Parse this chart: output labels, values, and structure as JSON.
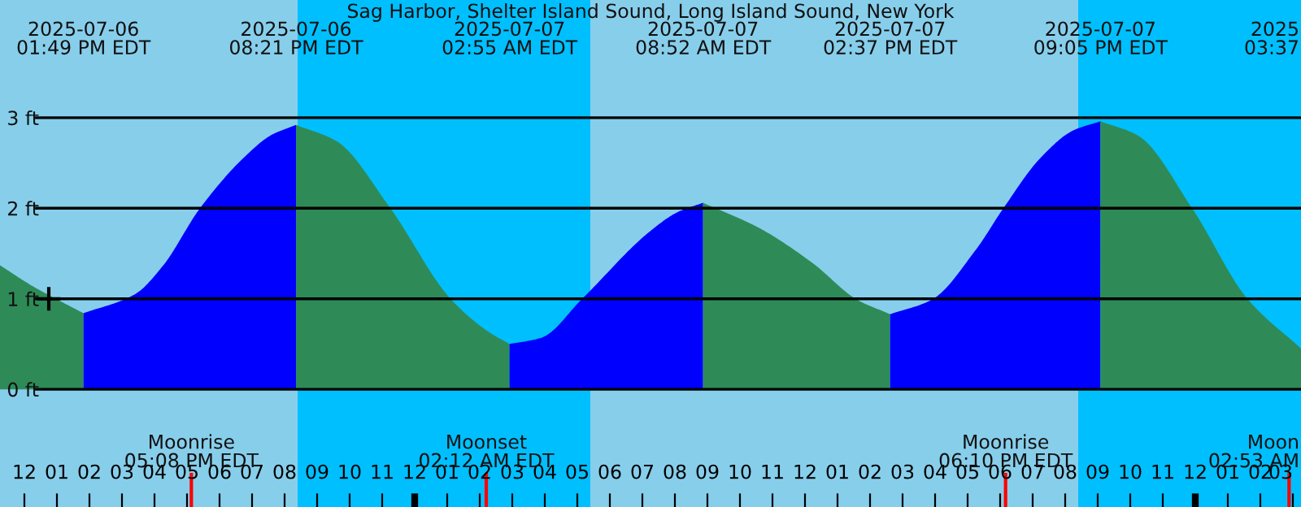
{
  "chart_data": {
    "type": "area",
    "title": "Sag Harbor, Shelter Island Sound, Long Island Sound, New York",
    "xlim": [
      "2025-07-06T11:15",
      "2025-07-08T03:15"
    ],
    "ylim": [
      -1.3,
      4.3
    ],
    "yticks": [
      {
        "value": 0,
        "label": "0 ft"
      },
      {
        "value": 1,
        "label": "1 ft"
      },
      {
        "value": 2,
        "label": "2 ft"
      },
      {
        "value": 3,
        "label": "3 ft"
      }
    ],
    "xticks": [
      {
        "value": "2025-07-06T12:00",
        "label": "12"
      },
      {
        "value": "2025-07-06T13:00",
        "label": "01"
      },
      {
        "value": "2025-07-06T14:00",
        "label": "02"
      },
      {
        "value": "2025-07-06T15:00",
        "label": "03"
      },
      {
        "value": "2025-07-06T16:00",
        "label": "04"
      },
      {
        "value": "2025-07-06T17:00",
        "label": "05"
      },
      {
        "value": "2025-07-06T18:00",
        "label": "06"
      },
      {
        "value": "2025-07-06T19:00",
        "label": "07"
      },
      {
        "value": "2025-07-06T20:00",
        "label": "08"
      },
      {
        "value": "2025-07-06T21:00",
        "label": "09"
      },
      {
        "value": "2025-07-06T22:00",
        "label": "10"
      },
      {
        "value": "2025-07-06T23:00",
        "label": "11"
      },
      {
        "value": "2025-07-07T00:00",
        "label": "12"
      },
      {
        "value": "2025-07-07T01:00",
        "label": "01"
      },
      {
        "value": "2025-07-07T02:00",
        "label": "02"
      },
      {
        "value": "2025-07-07T03:00",
        "label": "03"
      },
      {
        "value": "2025-07-07T04:00",
        "label": "04"
      },
      {
        "value": "2025-07-07T05:00",
        "label": "05"
      },
      {
        "value": "2025-07-07T06:00",
        "label": "06"
      },
      {
        "value": "2025-07-07T07:00",
        "label": "07"
      },
      {
        "value": "2025-07-07T08:00",
        "label": "08"
      },
      {
        "value": "2025-07-07T09:00",
        "label": "09"
      },
      {
        "value": "2025-07-07T10:00",
        "label": "10"
      },
      {
        "value": "2025-07-07T11:00",
        "label": "11"
      },
      {
        "value": "2025-07-07T12:00",
        "label": "12"
      },
      {
        "value": "2025-07-07T13:00",
        "label": "01"
      },
      {
        "value": "2025-07-07T14:00",
        "label": "02"
      },
      {
        "value": "2025-07-07T15:00",
        "label": "03"
      },
      {
        "value": "2025-07-07T16:00",
        "label": "04"
      },
      {
        "value": "2025-07-07T17:00",
        "label": "05"
      },
      {
        "value": "2025-07-07T18:00",
        "label": "06"
      },
      {
        "value": "2025-07-07T19:00",
        "label": "07"
      },
      {
        "value": "2025-07-07T20:00",
        "label": "08"
      },
      {
        "value": "2025-07-07T21:00",
        "label": "09"
      },
      {
        "value": "2025-07-07T22:00",
        "label": "10"
      },
      {
        "value": "2025-07-07T23:00",
        "label": "11"
      },
      {
        "value": "2025-07-08T00:00",
        "label": "12"
      },
      {
        "value": "2025-07-08T01:00",
        "label": "01"
      },
      {
        "value": "2025-07-08T02:00",
        "label": "02"
      },
      {
        "value": "2025-07-08T03:00",
        "label": "03"
      }
    ],
    "grid": "y",
    "series": [
      {
        "color": "#2e8b57",
        "x": [
          "2025-07-06T11:15",
          "2025-07-06T12:15",
          "2025-07-06T13:49"
        ],
        "values": [
          1.37,
          1.14,
          0.84
        ]
      },
      {
        "color": "#0000ff",
        "x": [
          "2025-07-06T13:49",
          "2025-07-06T15:24",
          "2025-07-06T16:15",
          "2025-07-06T17:24",
          "2025-07-06T18:45",
          "2025-07-06T19:36",
          "2025-07-06T20:21"
        ],
        "values": [
          0.84,
          1.05,
          1.36,
          2.0,
          2.56,
          2.81,
          2.92
        ]
      },
      {
        "color": "#2e8b57",
        "x": [
          "2025-07-06T20:21",
          "2025-07-06T21:36",
          "2025-07-06T23:15",
          "2025-07-07T01:06",
          "2025-07-07T02:15",
          "2025-07-07T02:55"
        ],
        "values": [
          2.92,
          2.74,
          2.0,
          1.0,
          0.64,
          0.5
        ]
      },
      {
        "color": "#0000ff",
        "x": [
          "2025-07-07T02:55",
          "2025-07-07T03:54",
          "2025-07-07T05:09",
          "2025-07-07T07:15",
          "2025-07-07T08:06",
          "2025-07-07T08:52"
        ],
        "values": [
          0.5,
          0.57,
          1.0,
          1.75,
          1.96,
          2.06
        ]
      },
      {
        "color": "#2e8b57",
        "x": [
          "2025-07-07T08:52",
          "2025-07-07T10:36",
          "2025-07-07T12:15",
          "2025-07-07T13:36",
          "2025-07-07T14:37"
        ],
        "values": [
          2.06,
          1.78,
          1.39,
          0.99,
          0.83
        ]
      },
      {
        "color": "#0000ff",
        "x": [
          "2025-07-07T14:37",
          "2025-07-07T15:54",
          "2025-07-07T17:15",
          "2025-07-07T18:06",
          "2025-07-07T19:15",
          "2025-07-07T20:15",
          "2025-07-07T21:05"
        ],
        "values": [
          0.83,
          0.99,
          1.54,
          2.0,
          2.56,
          2.86,
          2.96
        ]
      },
      {
        "color": "#2e8b57",
        "x": [
          "2025-07-07T21:05",
          "2025-07-07T22:15",
          "2025-07-07T23:54",
          "2025-07-08T01:36",
          "2025-07-08T03:15"
        ],
        "values": [
          2.96,
          2.8,
          2.0,
          1.0,
          0.45
        ]
      },
      {
        "type": "scatter",
        "marker": "cross",
        "color": "#000000",
        "x": [
          "2025-07-06T12:45"
        ],
        "values": [
          1.0
        ]
      }
    ],
    "bands": [
      {
        "axis": "x",
        "from": "2025-07-06T20:24",
        "to": "2025-07-07T05:24",
        "color": "#00bfff"
      },
      {
        "axis": "x",
        "from": "2025-07-07T20:24",
        "to": "2025-07-08T03:15",
        "color": "#00bfff"
      }
    ],
    "ref_lines": [
      {
        "axis": "x",
        "value": "2025-07-06T17:08",
        "label": "Moonrise\n05:08 PM EDT",
        "color": "#ff0000"
      },
      {
        "axis": "x",
        "value": "2025-07-07T02:12",
        "label": "Moonset\n02:12 AM EDT",
        "color": "#ff0000"
      },
      {
        "axis": "x",
        "value": "2025-07-07T18:10",
        "label": "Moonrise\n06:10 PM EDT",
        "color": "#ff0000"
      },
      {
        "axis": "x",
        "value": "2025-07-08T02:53",
        "label": "Moon\n02:53 AM",
        "color": "#ff0000"
      }
    ],
    "annotations": [
      "2025-07-06\n01:49 PM EDT",
      "2025-07-06\n08:21 PM EDT",
      "2025-07-07\n02:55 AM EDT",
      "2025-07-07\n08:52 AM EDT",
      "2025-07-07\n02:37 PM EDT",
      "2025-07-07\n09:05 PM EDT",
      "2025\n03:37"
    ]
  }
}
